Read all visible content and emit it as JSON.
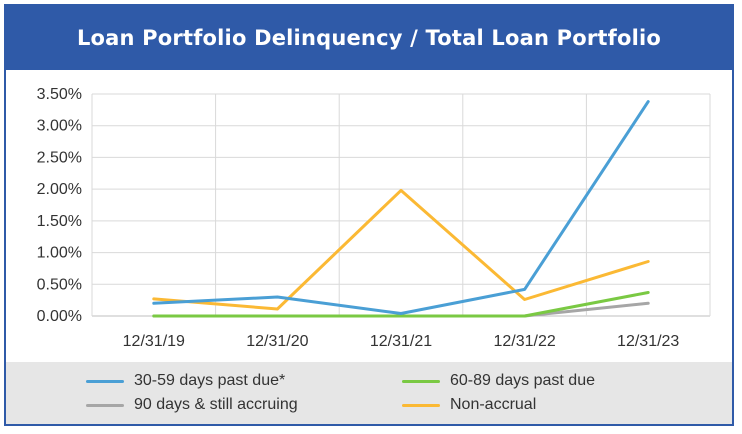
{
  "header": {
    "title": "Loan Portfolio Delinquency / Total Loan Portfolio"
  },
  "colors": {
    "header_bg": "#2f5aa8",
    "grid": "#d9d9d9",
    "legend_bg": "#e6e6e6"
  },
  "chart_data": {
    "type": "line",
    "title": "Loan Portfolio Delinquency / Total Loan Portfolio",
    "categories": [
      "12/31/19",
      "12/31/20",
      "12/31/21",
      "12/31/22",
      "12/31/23"
    ],
    "ylim": [
      0,
      3.5
    ],
    "yticks": [
      "0.00%",
      "0.50%",
      "1.00%",
      "1.50%",
      "2.00%",
      "2.50%",
      "3.00%",
      "3.50%"
    ],
    "grid": true,
    "legend_position": "bottom",
    "series": [
      {
        "name": "30-59 days past due*",
        "color": "#4a9fd5",
        "values": [
          0.2,
          0.3,
          0.04,
          0.42,
          3.38
        ]
      },
      {
        "name": "60-89 days past due",
        "color": "#7ac943",
        "values": [
          0.0,
          0.0,
          0.0,
          0.0,
          0.37
        ]
      },
      {
        "name": "90 days & still accruing",
        "color": "#a6a6a6",
        "values": [
          0.0,
          0.0,
          0.0,
          0.0,
          0.2
        ]
      },
      {
        "name": "Non-accrual",
        "color": "#fbb934",
        "values": [
          0.27,
          0.11,
          1.98,
          0.26,
          0.86
        ]
      }
    ]
  }
}
